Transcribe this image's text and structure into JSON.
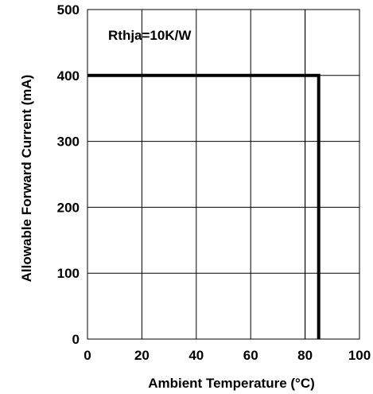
{
  "chart_data": {
    "type": "line",
    "title": "",
    "xlabel": "Ambient Temperature (°C)",
    "ylabel": "Allowable Forward Current (mA)",
    "xlim": [
      0,
      100
    ],
    "ylim": [
      0,
      500
    ],
    "x_ticks": [
      0,
      20,
      40,
      60,
      80,
      100
    ],
    "y_ticks": [
      0,
      100,
      200,
      300,
      400,
      500
    ],
    "x_tick_labels": [
      "0",
      "20",
      "40",
      "60",
      "80",
      "100"
    ],
    "y_tick_labels": [
      "0",
      "100",
      "200",
      "300",
      "400",
      "500"
    ],
    "x_grid_extra": [
      80
    ],
    "grid": true,
    "annotation": "Rthja=10K/W",
    "series": [
      {
        "x": [
          0,
          85,
          85
        ],
        "y": [
          400,
          400,
          0
        ],
        "color": "#000000"
      }
    ]
  }
}
